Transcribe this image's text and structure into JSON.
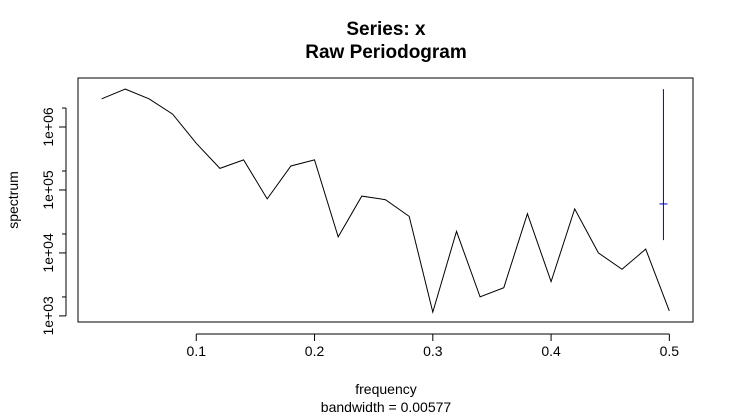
{
  "chart_data": {
    "type": "line",
    "title": "Series: x",
    "subtitle": "Raw Periodogram",
    "xlabel": "frequency",
    "sublabel": "bandwidth = 0.00577",
    "ylabel": "spectrum",
    "y_scale": "log",
    "xlim": [
      0.0,
      0.52
    ],
    "ylim": [
      800,
      6000000
    ],
    "x_ticks": [
      {
        "value": 0.1,
        "label": "0.1"
      },
      {
        "value": 0.2,
        "label": "0.2"
      },
      {
        "value": 0.3,
        "label": "0.3"
      },
      {
        "value": 0.4,
        "label": "0.4"
      },
      {
        "value": 0.5,
        "label": "0.5"
      }
    ],
    "y_ticks": [
      {
        "value": 1000,
        "label": "1e+03"
      },
      {
        "value": 10000,
        "label": "1e+04"
      },
      {
        "value": 100000,
        "label": "1e+05"
      },
      {
        "value": 1000000,
        "label": "1e+06"
      }
    ],
    "y_minor_ticks": [
      2000,
      20000,
      200000,
      2000000
    ],
    "series": [
      {
        "color": "#000000",
        "x": [
          0.02,
          0.04,
          0.06,
          0.08,
          0.1,
          0.12,
          0.14,
          0.16,
          0.18,
          0.2,
          0.22,
          0.24,
          0.26,
          0.28,
          0.3,
          0.32,
          0.34,
          0.36,
          0.38,
          0.4,
          0.42,
          0.44,
          0.46,
          0.48,
          0.5
        ],
        "y": [
          2800000,
          4000000,
          2800000,
          1600000,
          550000,
          220000,
          300000,
          72000,
          240000,
          300000,
          18000,
          80000,
          70000,
          38000,
          1150,
          22000,
          2000,
          2800,
          42000,
          3500,
          50000,
          10000,
          5500,
          11500,
          1200
        ]
      }
    ],
    "confidence_bar": {
      "color": "#0000cc",
      "x": 0.495,
      "center": 60000,
      "lower": 16000,
      "upper": 4000000
    }
  }
}
